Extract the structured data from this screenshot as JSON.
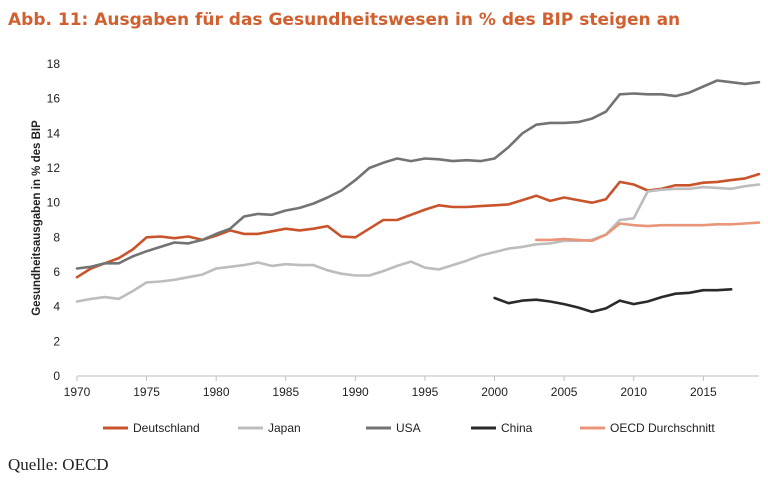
{
  "title": "Abb. 11: Ausgaben für das Gesundheitswesen in % des BIP steigen an",
  "source": "Quelle: OECD",
  "colors": {
    "title": "#d0602f",
    "Deutschland": "#c9532a",
    "Japan": "#bdbdbd",
    "USA": "#737373",
    "China": "#2a2a2a",
    "OECD Durchschnitt": "#e8957a"
  },
  "chart_data": {
    "type": "line",
    "title": "Abb. 11: Ausgaben für das Gesundheitswesen in % des BIP steigen an",
    "xlabel": "",
    "ylabel": "Gesundheitsausgaben in % des BIP",
    "xlim": [
      1970,
      2019
    ],
    "ylim": [
      0,
      18
    ],
    "xticks": [
      1970,
      1975,
      1980,
      1985,
      1990,
      1995,
      2000,
      2005,
      2010,
      2015
    ],
    "yticks": [
      0,
      2,
      4,
      6,
      8,
      10,
      12,
      14,
      16,
      18
    ],
    "grid": false,
    "legend_position": "bottom",
    "series": [
      {
        "name": "Deutschland",
        "x": [
          1970,
          1971,
          1972,
          1973,
          1974,
          1975,
          1976,
          1977,
          1978,
          1979,
          1980,
          1981,
          1982,
          1983,
          1984,
          1985,
          1986,
          1987,
          1988,
          1989,
          1990,
          1991,
          1992,
          1993,
          1994,
          1995,
          1996,
          1997,
          1998,
          1999,
          2000,
          2001,
          2002,
          2003,
          2004,
          2005,
          2006,
          2007,
          2008,
          2009,
          2010,
          2011,
          2012,
          2013,
          2014,
          2015,
          2016,
          2017,
          2018,
          2019
        ],
        "values": [
          5.7,
          6.2,
          6.5,
          6.8,
          7.3,
          8.0,
          8.05,
          7.95,
          8.05,
          7.85,
          8.1,
          8.4,
          8.2,
          8.2,
          8.35,
          8.5,
          8.4,
          8.5,
          8.65,
          8.05,
          8.0,
          8.5,
          9.0,
          9.0,
          9.3,
          9.6,
          9.85,
          9.75,
          9.75,
          9.8,
          9.85,
          9.9,
          10.15,
          10.4,
          10.1,
          10.3,
          10.15,
          10.0,
          10.2,
          11.2,
          11.05,
          10.7,
          10.8,
          11.0,
          11.0,
          11.15,
          11.2,
          11.3,
          11.4,
          11.65
        ]
      },
      {
        "name": "Japan",
        "x": [
          1970,
          1971,
          1972,
          1973,
          1974,
          1975,
          1976,
          1977,
          1978,
          1979,
          1980,
          1981,
          1982,
          1983,
          1984,
          1985,
          1986,
          1987,
          1988,
          1989,
          1990,
          1991,
          1992,
          1993,
          1994,
          1995,
          1996,
          1997,
          1998,
          1999,
          2000,
          2001,
          2002,
          2003,
          2004,
          2005,
          2006,
          2007,
          2008,
          2009,
          2010,
          2011,
          2012,
          2013,
          2014,
          2015,
          2016,
          2017,
          2018,
          2019
        ],
        "values": [
          4.3,
          4.45,
          4.55,
          4.45,
          4.9,
          5.4,
          5.45,
          5.55,
          5.7,
          5.85,
          6.2,
          6.3,
          6.4,
          6.55,
          6.35,
          6.45,
          6.4,
          6.4,
          6.1,
          5.9,
          5.8,
          5.8,
          6.05,
          6.35,
          6.6,
          6.25,
          6.15,
          6.4,
          6.65,
          6.95,
          7.15,
          7.35,
          7.45,
          7.6,
          7.65,
          7.8,
          7.8,
          7.85,
          8.15,
          9.0,
          9.1,
          10.65,
          10.75,
          10.8,
          10.8,
          10.9,
          10.85,
          10.8,
          10.95,
          11.05
        ]
      },
      {
        "name": "USA",
        "x": [
          1970,
          1971,
          1972,
          1973,
          1974,
          1975,
          1976,
          1977,
          1978,
          1979,
          1980,
          1981,
          1982,
          1983,
          1984,
          1985,
          1986,
          1987,
          1988,
          1989,
          1990,
          1991,
          1992,
          1993,
          1994,
          1995,
          1996,
          1997,
          1998,
          1999,
          2000,
          2001,
          2002,
          2003,
          2004,
          2005,
          2006,
          2007,
          2008,
          2009,
          2010,
          2011,
          2012,
          2013,
          2014,
          2015,
          2016,
          2017,
          2018,
          2019
        ],
        "values": [
          6.2,
          6.3,
          6.5,
          6.5,
          6.9,
          7.2,
          7.45,
          7.7,
          7.65,
          7.85,
          8.2,
          8.5,
          9.2,
          9.35,
          9.3,
          9.55,
          9.7,
          9.95,
          10.3,
          10.7,
          11.3,
          12.0,
          12.3,
          12.55,
          12.4,
          12.55,
          12.5,
          12.4,
          12.45,
          12.4,
          12.55,
          13.2,
          14.0,
          14.5,
          14.6,
          14.6,
          14.65,
          14.85,
          15.25,
          16.25,
          16.3,
          16.25,
          16.25,
          16.15,
          16.35,
          16.7,
          17.05,
          16.95,
          16.85,
          16.95
        ]
      },
      {
        "name": "China",
        "x": [
          2000,
          2001,
          2002,
          2003,
          2004,
          2005,
          2006,
          2007,
          2008,
          2009,
          2010,
          2011,
          2012,
          2013,
          2014,
          2015,
          2016,
          2017
        ],
        "values": [
          4.5,
          4.2,
          4.35,
          4.4,
          4.3,
          4.15,
          3.95,
          3.7,
          3.9,
          4.35,
          4.15,
          4.3,
          4.55,
          4.75,
          4.8,
          4.95,
          4.95,
          5.0
        ]
      },
      {
        "name": "OECD Durchschnitt",
        "x": [
          2003,
          2004,
          2005,
          2006,
          2007,
          2008,
          2009,
          2010,
          2011,
          2012,
          2013,
          2014,
          2015,
          2016,
          2017,
          2018,
          2019
        ],
        "values": [
          7.85,
          7.85,
          7.9,
          7.85,
          7.8,
          8.15,
          8.8,
          8.7,
          8.65,
          8.7,
          8.7,
          8.7,
          8.7,
          8.75,
          8.75,
          8.8,
          8.85
        ]
      }
    ]
  }
}
